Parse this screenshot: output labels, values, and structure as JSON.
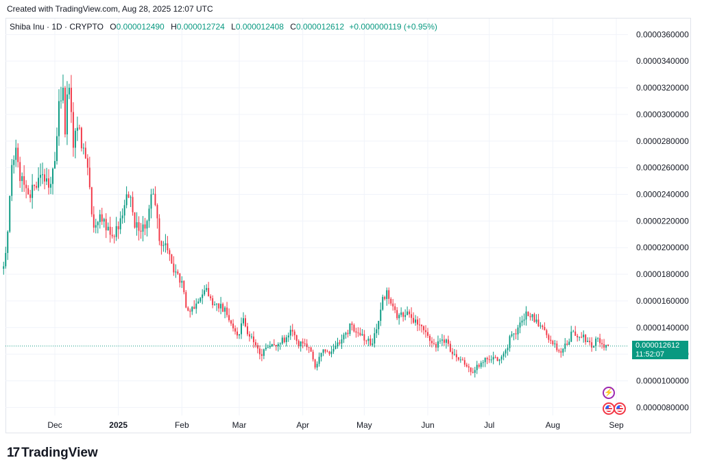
{
  "header": {
    "created": "Created with TradingView.com, Aug 28, 2025 12:07 UTC"
  },
  "legend": {
    "symbol": "Shiba Inu · 1D · CRYPTO",
    "o_label": "O",
    "o": "0.000012490",
    "h_label": "H",
    "h": "0.000012724",
    "l_label": "L",
    "l": "0.000012408",
    "c_label": "C",
    "c": "0.000012612",
    "change": "+0.000000119 (+0.95%)"
  },
  "price_badge": {
    "price": "0.000012612",
    "countdown": "11:52:07"
  },
  "logo": {
    "text": "TradingView"
  },
  "colors": {
    "up": "#089981",
    "down": "#f23645",
    "grid": "#f0f3fa",
    "last_line": "#089981"
  },
  "events": [
    "lightning-icon",
    "us-flag-icon",
    "us-flag-icon"
  ],
  "chart_data": {
    "type": "candlestick",
    "interval": "1D",
    "y_axis_ticks": [
      "0.0000080000",
      "0.0000100000",
      "0.0000120000",
      "0.0000140000",
      "0.0000160000",
      "0.0000180000",
      "0.0000200000",
      "0.0000220000",
      "0.0000240000",
      "0.0000260000",
      "0.0000280000",
      "0.0000300000",
      "0.0000320000",
      "0.0000340000",
      "0.0000360000"
    ],
    "ylim": [
      7.4e-06,
      3.72e-05
    ],
    "x_axis_ticks": [
      {
        "label": "Dec",
        "date": "2024-12-01"
      },
      {
        "label": "2025",
        "date": "2025-01-01",
        "bold": true
      },
      {
        "label": "Feb",
        "date": "2025-02-01"
      },
      {
        "label": "Mar",
        "date": "2025-03-01"
      },
      {
        "label": "Apr",
        "date": "2025-04-01"
      },
      {
        "label": "May",
        "date": "2025-05-01"
      },
      {
        "label": "Jun",
        "date": "2025-06-01"
      },
      {
        "label": "Jul",
        "date": "2025-07-01"
      },
      {
        "label": "Aug",
        "date": "2025-08-01"
      },
      {
        "label": "Sep",
        "date": "2025-09-01"
      }
    ],
    "last_price": 1.2612e-05,
    "close_anchors": [
      [
        "2024-11-06",
        1.86e-05
      ],
      [
        "2024-11-07",
        1.96e-05
      ],
      [
        "2024-11-08",
        2.12e-05
      ],
      [
        "2024-11-10",
        2.62e-05
      ],
      [
        "2024-11-12",
        2.75e-05
      ],
      [
        "2024-11-14",
        2.5e-05
      ],
      [
        "2024-11-18",
        2.4e-05
      ],
      [
        "2024-11-22",
        2.45e-05
      ],
      [
        "2024-11-25",
        2.55e-05
      ],
      [
        "2024-11-28",
        2.45e-05
      ],
      [
        "2024-12-01",
        2.65e-05
      ],
      [
        "2024-12-03",
        3.1e-05
      ],
      [
        "2024-12-05",
        3.2e-05
      ],
      [
        "2024-12-06",
        2.85e-05
      ],
      [
        "2024-12-07",
        3.15e-05
      ],
      [
        "2024-12-08",
        3.2e-05
      ],
      [
        "2024-12-10",
        2.75e-05
      ],
      [
        "2024-12-12",
        2.9e-05
      ],
      [
        "2024-12-15",
        2.75e-05
      ],
      [
        "2024-12-17",
        2.6e-05
      ],
      [
        "2024-12-19",
        2.25e-05
      ],
      [
        "2024-12-20",
        2.15e-05
      ],
      [
        "2024-12-23",
        2.25e-05
      ],
      [
        "2024-12-26",
        2.13e-05
      ],
      [
        "2024-12-30",
        2.08e-05
      ],
      [
        "2025-01-02",
        2.22e-05
      ],
      [
        "2025-01-05",
        2.4e-05
      ],
      [
        "2025-01-07",
        2.38e-05
      ],
      [
        "2025-01-09",
        2.15e-05
      ],
      [
        "2025-01-12",
        2.12e-05
      ],
      [
        "2025-01-15",
        2.2e-05
      ],
      [
        "2025-01-17",
        2.4e-05
      ],
      [
        "2025-01-19",
        2.32e-05
      ],
      [
        "2025-01-21",
        2.05e-05
      ],
      [
        "2025-01-25",
        1.98e-05
      ],
      [
        "2025-01-27",
        1.88e-05
      ],
      [
        "2025-01-29",
        1.82e-05
      ],
      [
        "2025-02-01",
        1.75e-05
      ],
      [
        "2025-02-03",
        1.55e-05
      ],
      [
        "2025-02-05",
        1.52e-05
      ],
      [
        "2025-02-08",
        1.58e-05
      ],
      [
        "2025-02-12",
        1.68e-05
      ],
      [
        "2025-02-15",
        1.62e-05
      ],
      [
        "2025-02-18",
        1.58e-05
      ],
      [
        "2025-02-22",
        1.55e-05
      ],
      [
        "2025-02-25",
        1.43e-05
      ],
      [
        "2025-02-27",
        1.37e-05
      ],
      [
        "2025-03-01",
        1.35e-05
      ],
      [
        "2025-03-03",
        1.47e-05
      ],
      [
        "2025-03-05",
        1.35e-05
      ],
      [
        "2025-03-08",
        1.29e-05
      ],
      [
        "2025-03-11",
        1.2e-05
      ],
      [
        "2025-03-14",
        1.25e-05
      ],
      [
        "2025-03-18",
        1.27e-05
      ],
      [
        "2025-03-21",
        1.28e-05
      ],
      [
        "2025-03-25",
        1.34e-05
      ],
      [
        "2025-03-27",
        1.37e-05
      ],
      [
        "2025-03-29",
        1.3e-05
      ],
      [
        "2025-04-01",
        1.28e-05
      ],
      [
        "2025-04-04",
        1.25e-05
      ],
      [
        "2025-04-07",
        1.1e-05
      ],
      [
        "2025-04-09",
        1.18e-05
      ],
      [
        "2025-04-12",
        1.22e-05
      ],
      [
        "2025-04-15",
        1.22e-05
      ],
      [
        "2025-04-19",
        1.28e-05
      ],
      [
        "2025-04-22",
        1.36e-05
      ],
      [
        "2025-04-25",
        1.42e-05
      ],
      [
        "2025-04-28",
        1.36e-05
      ],
      [
        "2025-05-02",
        1.3e-05
      ],
      [
        "2025-05-05",
        1.28e-05
      ],
      [
        "2025-05-08",
        1.45e-05
      ],
      [
        "2025-05-10",
        1.63e-05
      ],
      [
        "2025-05-12",
        1.68e-05
      ],
      [
        "2025-05-14",
        1.58e-05
      ],
      [
        "2025-05-17",
        1.47e-05
      ],
      [
        "2025-05-20",
        1.48e-05
      ],
      [
        "2025-05-23",
        1.5e-05
      ],
      [
        "2025-05-26",
        1.46e-05
      ],
      [
        "2025-05-30",
        1.38e-05
      ],
      [
        "2025-06-02",
        1.3e-05
      ],
      [
        "2025-06-05",
        1.25e-05
      ],
      [
        "2025-06-08",
        1.31e-05
      ],
      [
        "2025-06-10",
        1.31e-05
      ],
      [
        "2025-06-13",
        1.2e-05
      ],
      [
        "2025-06-17",
        1.16e-05
      ],
      [
        "2025-06-21",
        1.1e-05
      ],
      [
        "2025-06-23",
        1.06e-05
      ],
      [
        "2025-06-25",
        1.12e-05
      ],
      [
        "2025-06-28",
        1.14e-05
      ],
      [
        "2025-07-02",
        1.16e-05
      ],
      [
        "2025-07-06",
        1.16e-05
      ],
      [
        "2025-07-09",
        1.23e-05
      ],
      [
        "2025-07-12",
        1.35e-05
      ],
      [
        "2025-07-15",
        1.4e-05
      ],
      [
        "2025-07-19",
        1.52e-05
      ],
      [
        "2025-07-22",
        1.5e-05
      ],
      [
        "2025-07-25",
        1.41e-05
      ],
      [
        "2025-07-28",
        1.38e-05
      ],
      [
        "2025-07-31",
        1.3e-05
      ],
      [
        "2025-08-03",
        1.23e-05
      ],
      [
        "2025-08-06",
        1.24e-05
      ],
      [
        "2025-08-08",
        1.27e-05
      ],
      [
        "2025-08-11",
        1.37e-05
      ],
      [
        "2025-08-14",
        1.33e-05
      ],
      [
        "2025-08-18",
        1.3e-05
      ],
      [
        "2025-08-20",
        1.25e-05
      ],
      [
        "2025-08-23",
        1.32e-05
      ],
      [
        "2025-08-26",
        1.25e-05
      ],
      [
        "2025-08-28",
        1.2612e-05
      ]
    ]
  }
}
